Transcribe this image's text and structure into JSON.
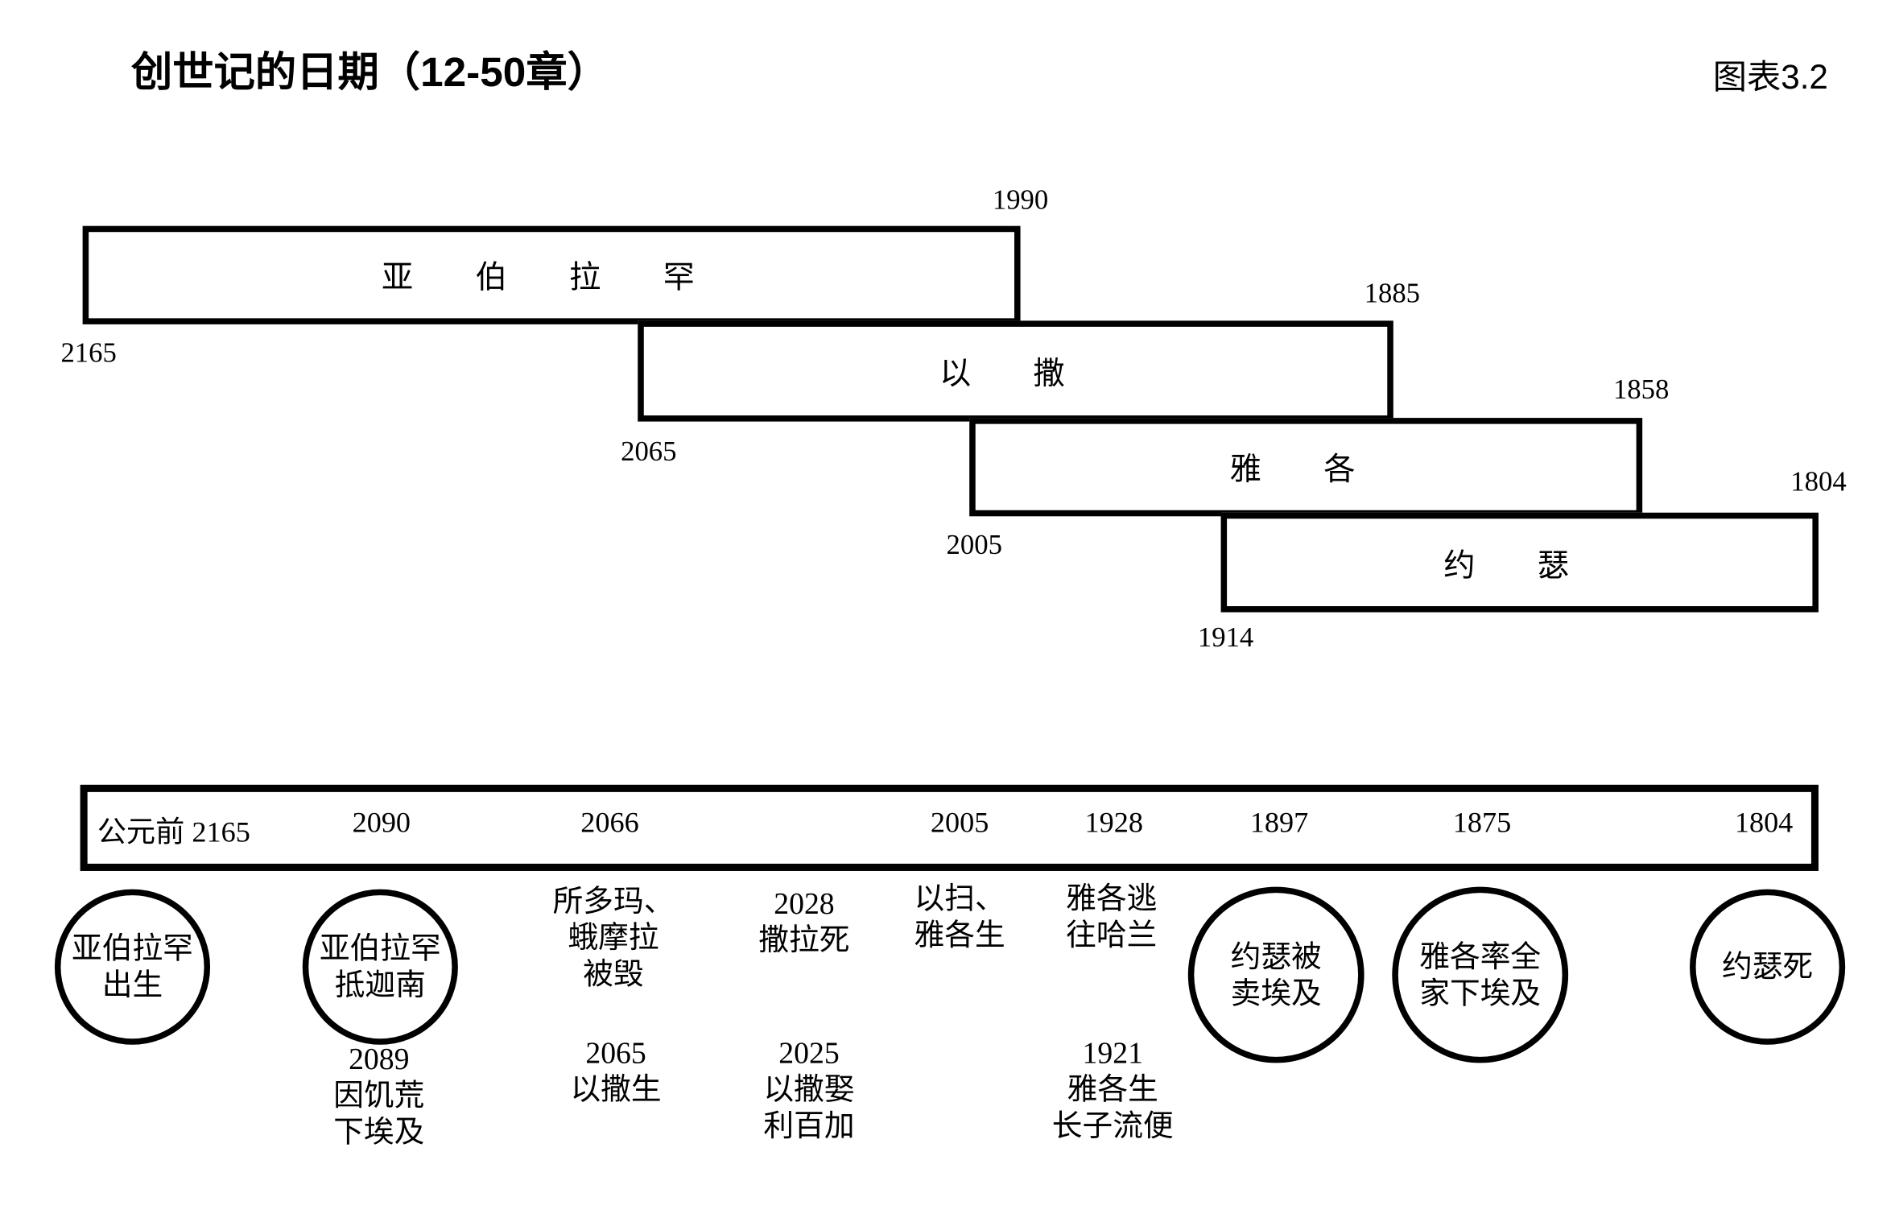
{
  "title": "创世记的日期（12-50章）",
  "chart_label": "图表3.2",
  "lifespans": [
    {
      "name": "亚 伯 拉 罕",
      "start": "2165",
      "end": "1990"
    },
    {
      "name": "以 撒",
      "start": "2065",
      "end": "1885"
    },
    {
      "name": "雅 各",
      "start": "2005",
      "end": "1858"
    },
    {
      "name": "约 瑟",
      "start": "1914",
      "end": "1804"
    }
  ],
  "timeline": {
    "prefix": "公元前",
    "years": [
      "2165",
      "2090",
      "2066",
      "2005",
      "1928",
      "1897",
      "1875",
      "1804"
    ]
  },
  "circled_events": [
    "亚伯拉罕\n出生",
    "亚伯拉罕\n抵迦南",
    "约瑟被\n卖埃及",
    "雅各率全\n家下埃及",
    "约瑟死"
  ],
  "events_upper": [
    "所多玛、\n蛾摩拉\n被毁",
    "2028\n撒拉死",
    "以扫、\n雅各生",
    "雅各逃\n往哈兰"
  ],
  "events_lower": [
    "2089\n因饥荒\n下埃及",
    "2065\n以撒生",
    "2025\n以撒娶\n利百加",
    "1921\n雅各生\n长子流便"
  ]
}
